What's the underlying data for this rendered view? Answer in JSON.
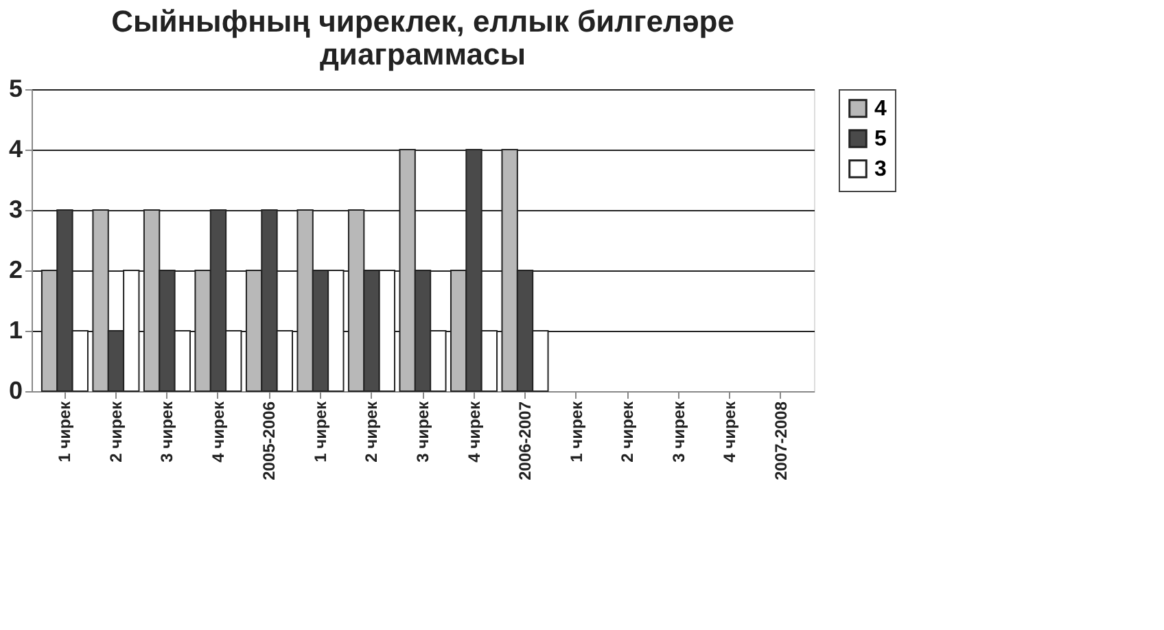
{
  "chart_data": {
    "type": "bar",
    "title": "Сыйныфның чиреклек, еллык билгеләре диаграммасы",
    "categories": [
      "1 чирек",
      "2 чирек",
      "3 чирек",
      "4 чирек",
      "2005-2006",
      "1 чирек",
      "2 чирек",
      "3 чирек",
      "4 чирек",
      "2006-2007",
      "1 чирек",
      "2 чирек",
      "3 чирек",
      "4 чирек",
      "2007-2008"
    ],
    "series": [
      {
        "name": "4",
        "color": "#b8b8b8",
        "values": [
          2,
          3,
          3,
          2,
          2,
          3,
          3,
          4,
          2,
          4,
          null,
          null,
          null,
          null,
          null
        ]
      },
      {
        "name": "5",
        "color": "#4a4a4a",
        "values": [
          3,
          1,
          2,
          3,
          3,
          2,
          2,
          2,
          4,
          2,
          null,
          null,
          null,
          null,
          null
        ]
      },
      {
        "name": "3",
        "color": "#ffffff",
        "values": [
          1,
          2,
          1,
          1,
          1,
          2,
          2,
          1,
          1,
          1,
          null,
          null,
          null,
          null,
          null
        ]
      }
    ],
    "ylim": [
      0,
      5
    ],
    "yticks": [
      0,
      1,
      2,
      3,
      4,
      5
    ],
    "grid": "y",
    "legend": "right"
  }
}
